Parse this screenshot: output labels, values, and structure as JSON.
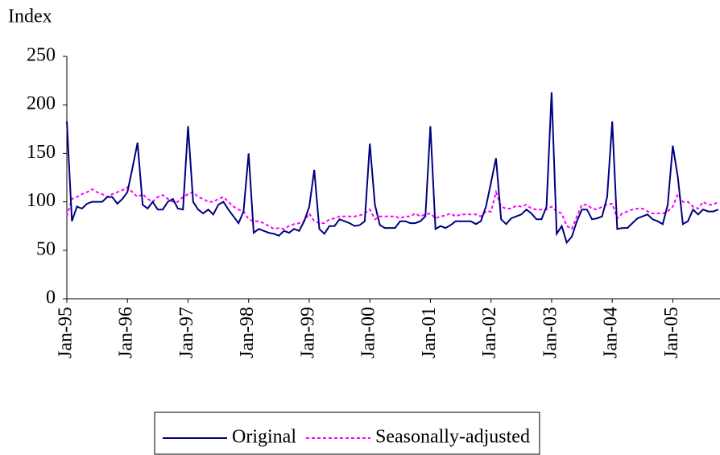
{
  "chart_data": {
    "type": "line",
    "y_label": "Index",
    "categories": [
      "Jan-95",
      null,
      null,
      null,
      null,
      null,
      null,
      null,
      null,
      null,
      null,
      null,
      "Jan-96",
      null,
      null,
      null,
      null,
      null,
      null,
      null,
      null,
      null,
      null,
      null,
      "Jan-97",
      null,
      null,
      null,
      null,
      null,
      null,
      null,
      null,
      null,
      null,
      null,
      "Jan-98",
      null,
      null,
      null,
      null,
      null,
      null,
      null,
      null,
      null,
      null,
      null,
      "Jan-99",
      null,
      null,
      null,
      null,
      null,
      null,
      null,
      null,
      null,
      null,
      null,
      "Jan-00",
      null,
      null,
      null,
      null,
      null,
      null,
      null,
      null,
      null,
      null,
      null,
      "Jan-01",
      null,
      null,
      null,
      null,
      null,
      null,
      null,
      null,
      null,
      null,
      null,
      "Jan-02",
      null,
      null,
      null,
      null,
      null,
      null,
      null,
      null,
      null,
      null,
      null,
      "Jan-03",
      null,
      null,
      null,
      null,
      null,
      null,
      null,
      null,
      null,
      null,
      null,
      "Jan-04",
      null,
      null,
      null,
      null,
      null,
      null,
      null,
      null,
      null,
      null,
      null,
      "Jan-05",
      null,
      null,
      null,
      null,
      null,
      null,
      null,
      null,
      null
    ],
    "series": [
      {
        "name": "Original",
        "color": "#000080",
        "line_style": "solid",
        "values": [
          183,
          80,
          95,
          93,
          98,
          100,
          100,
          100,
          105,
          105,
          98,
          103,
          110,
          135,
          161,
          97,
          93,
          100,
          92,
          92,
          100,
          103,
          93,
          92,
          178,
          100,
          92,
          88,
          92,
          87,
          97,
          100,
          92,
          85,
          78,
          90,
          150,
          68,
          72,
          70,
          68,
          67,
          65,
          70,
          68,
          72,
          70,
          80,
          95,
          133,
          72,
          67,
          75,
          75,
          82,
          80,
          78,
          75,
          76,
          80,
          160,
          97,
          76,
          73,
          73,
          73,
          80,
          80,
          78,
          78,
          80,
          85,
          178,
          72,
          75,
          73,
          76,
          80,
          80,
          80,
          80,
          77,
          80,
          95,
          120,
          145,
          82,
          77,
          83,
          85,
          87,
          92,
          88,
          82,
          82,
          95,
          213,
          67,
          75,
          58,
          64,
          80,
          92,
          92,
          82,
          83,
          85,
          105,
          183,
          72,
          73,
          73,
          78,
          83,
          85,
          87,
          82,
          80,
          77,
          97,
          158,
          125,
          77,
          80,
          92,
          87,
          92,
          90,
          90,
          92
        ]
      },
      {
        "name": "Seasonally-adjusted",
        "color": "#ff00ff",
        "line_style": "dashed",
        "values": [
          85,
          103,
          105,
          108,
          110,
          113,
          110,
          108,
          105,
          108,
          110,
          112,
          115,
          110,
          105,
          108,
          103,
          100,
          105,
          107,
          103,
          100,
          100,
          105,
          108,
          110,
          105,
          103,
          100,
          100,
          103,
          105,
          100,
          95,
          92,
          90,
          82,
          80,
          80,
          78,
          75,
          72,
          73,
          72,
          75,
          77,
          78,
          80,
          88,
          80,
          78,
          78,
          82,
          83,
          85,
          85,
          85,
          85,
          86,
          88,
          92,
          82,
          85,
          85,
          85,
          85,
          83,
          85,
          85,
          88,
          85,
          87,
          88,
          83,
          85,
          86,
          88,
          85,
          87,
          87,
          87,
          87,
          85,
          90,
          90,
          110,
          95,
          93,
          93,
          96,
          95,
          97,
          93,
          92,
          92,
          92,
          95,
          90,
          88,
          75,
          72,
          85,
          97,
          97,
          93,
          92,
          95,
          97,
          98,
          83,
          88,
          90,
          92,
          93,
          93,
          90,
          88,
          88,
          88,
          90,
          95,
          108,
          100,
          100,
          95,
          93,
          100,
          97,
          97,
          100
        ]
      }
    ],
    "ylim": [
      0,
      250
    ],
    "yticks": [
      0,
      50,
      100,
      150,
      200,
      250
    ],
    "legend": "bottom"
  }
}
